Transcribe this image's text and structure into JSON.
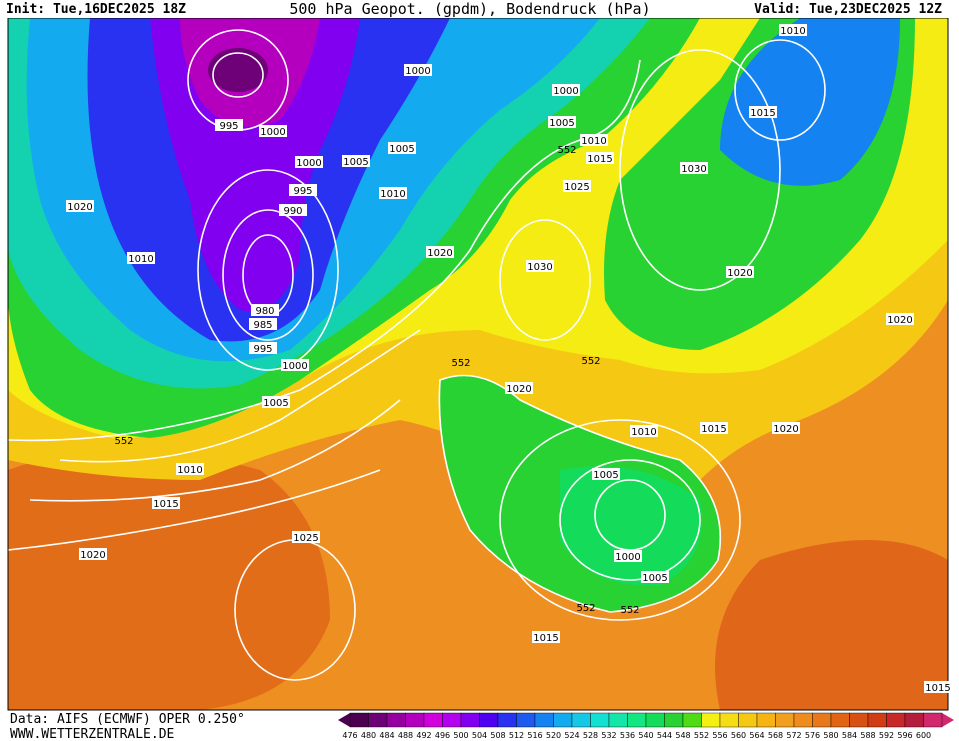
{
  "header": {
    "init": "Init: Tue,16DEC2025 18Z",
    "title": "500 hPa Geopot. (gpdm), Bodendruck (hPa)",
    "valid": "Valid: Tue,23DEC2025 12Z"
  },
  "footer": {
    "source": "Data: AIFS (ECMWF) OPER 0.250°",
    "site": "WWW.WETTERZENTRALE.DE"
  },
  "legend": {
    "values": [
      476,
      480,
      484,
      488,
      492,
      496,
      500,
      504,
      508,
      512,
      516,
      520,
      524,
      528,
      532,
      536,
      540,
      544,
      548,
      552,
      556,
      560,
      564,
      568,
      572,
      576,
      580,
      584,
      588,
      592,
      596,
      600
    ],
    "colors": [
      "#4b0050",
      "#6e0078",
      "#9600a0",
      "#b400be",
      "#d200dc",
      "#b400f0",
      "#8200f0",
      "#5000f0",
      "#2832f0",
      "#1e5af0",
      "#1482f0",
      "#14aaf0",
      "#14c8e6",
      "#14e0d2",
      "#14e6aa",
      "#14e682",
      "#14dc5a",
      "#28d232",
      "#50dc14",
      "#f5f014",
      "#f5dc14",
      "#f5c814",
      "#f5b414",
      "#f0a01e",
      "#f08c1e",
      "#e87819",
      "#e06414",
      "#d85014",
      "#d03c14",
      "#c82828",
      "#b41e3c",
      "#d2286e"
    ]
  },
  "isobar_labels": [
    995,
    1000,
    1000,
    1000,
    1005,
    1010,
    1015,
    1005,
    1005,
    1000,
    995,
    990,
    1010,
    1025,
    1030,
    1010,
    1015,
    1020,
    1010,
    1020,
    1030,
    1020,
    980,
    985,
    995,
    1000,
    1020,
    1020,
    1005,
    1010,
    1015,
    1010,
    1015,
    1020,
    1005,
    1025,
    1020,
    1000,
    1005,
    1015,
    1015
  ],
  "height_labels": [
    552,
    552,
    552,
    552,
    552,
    552
  ]
}
